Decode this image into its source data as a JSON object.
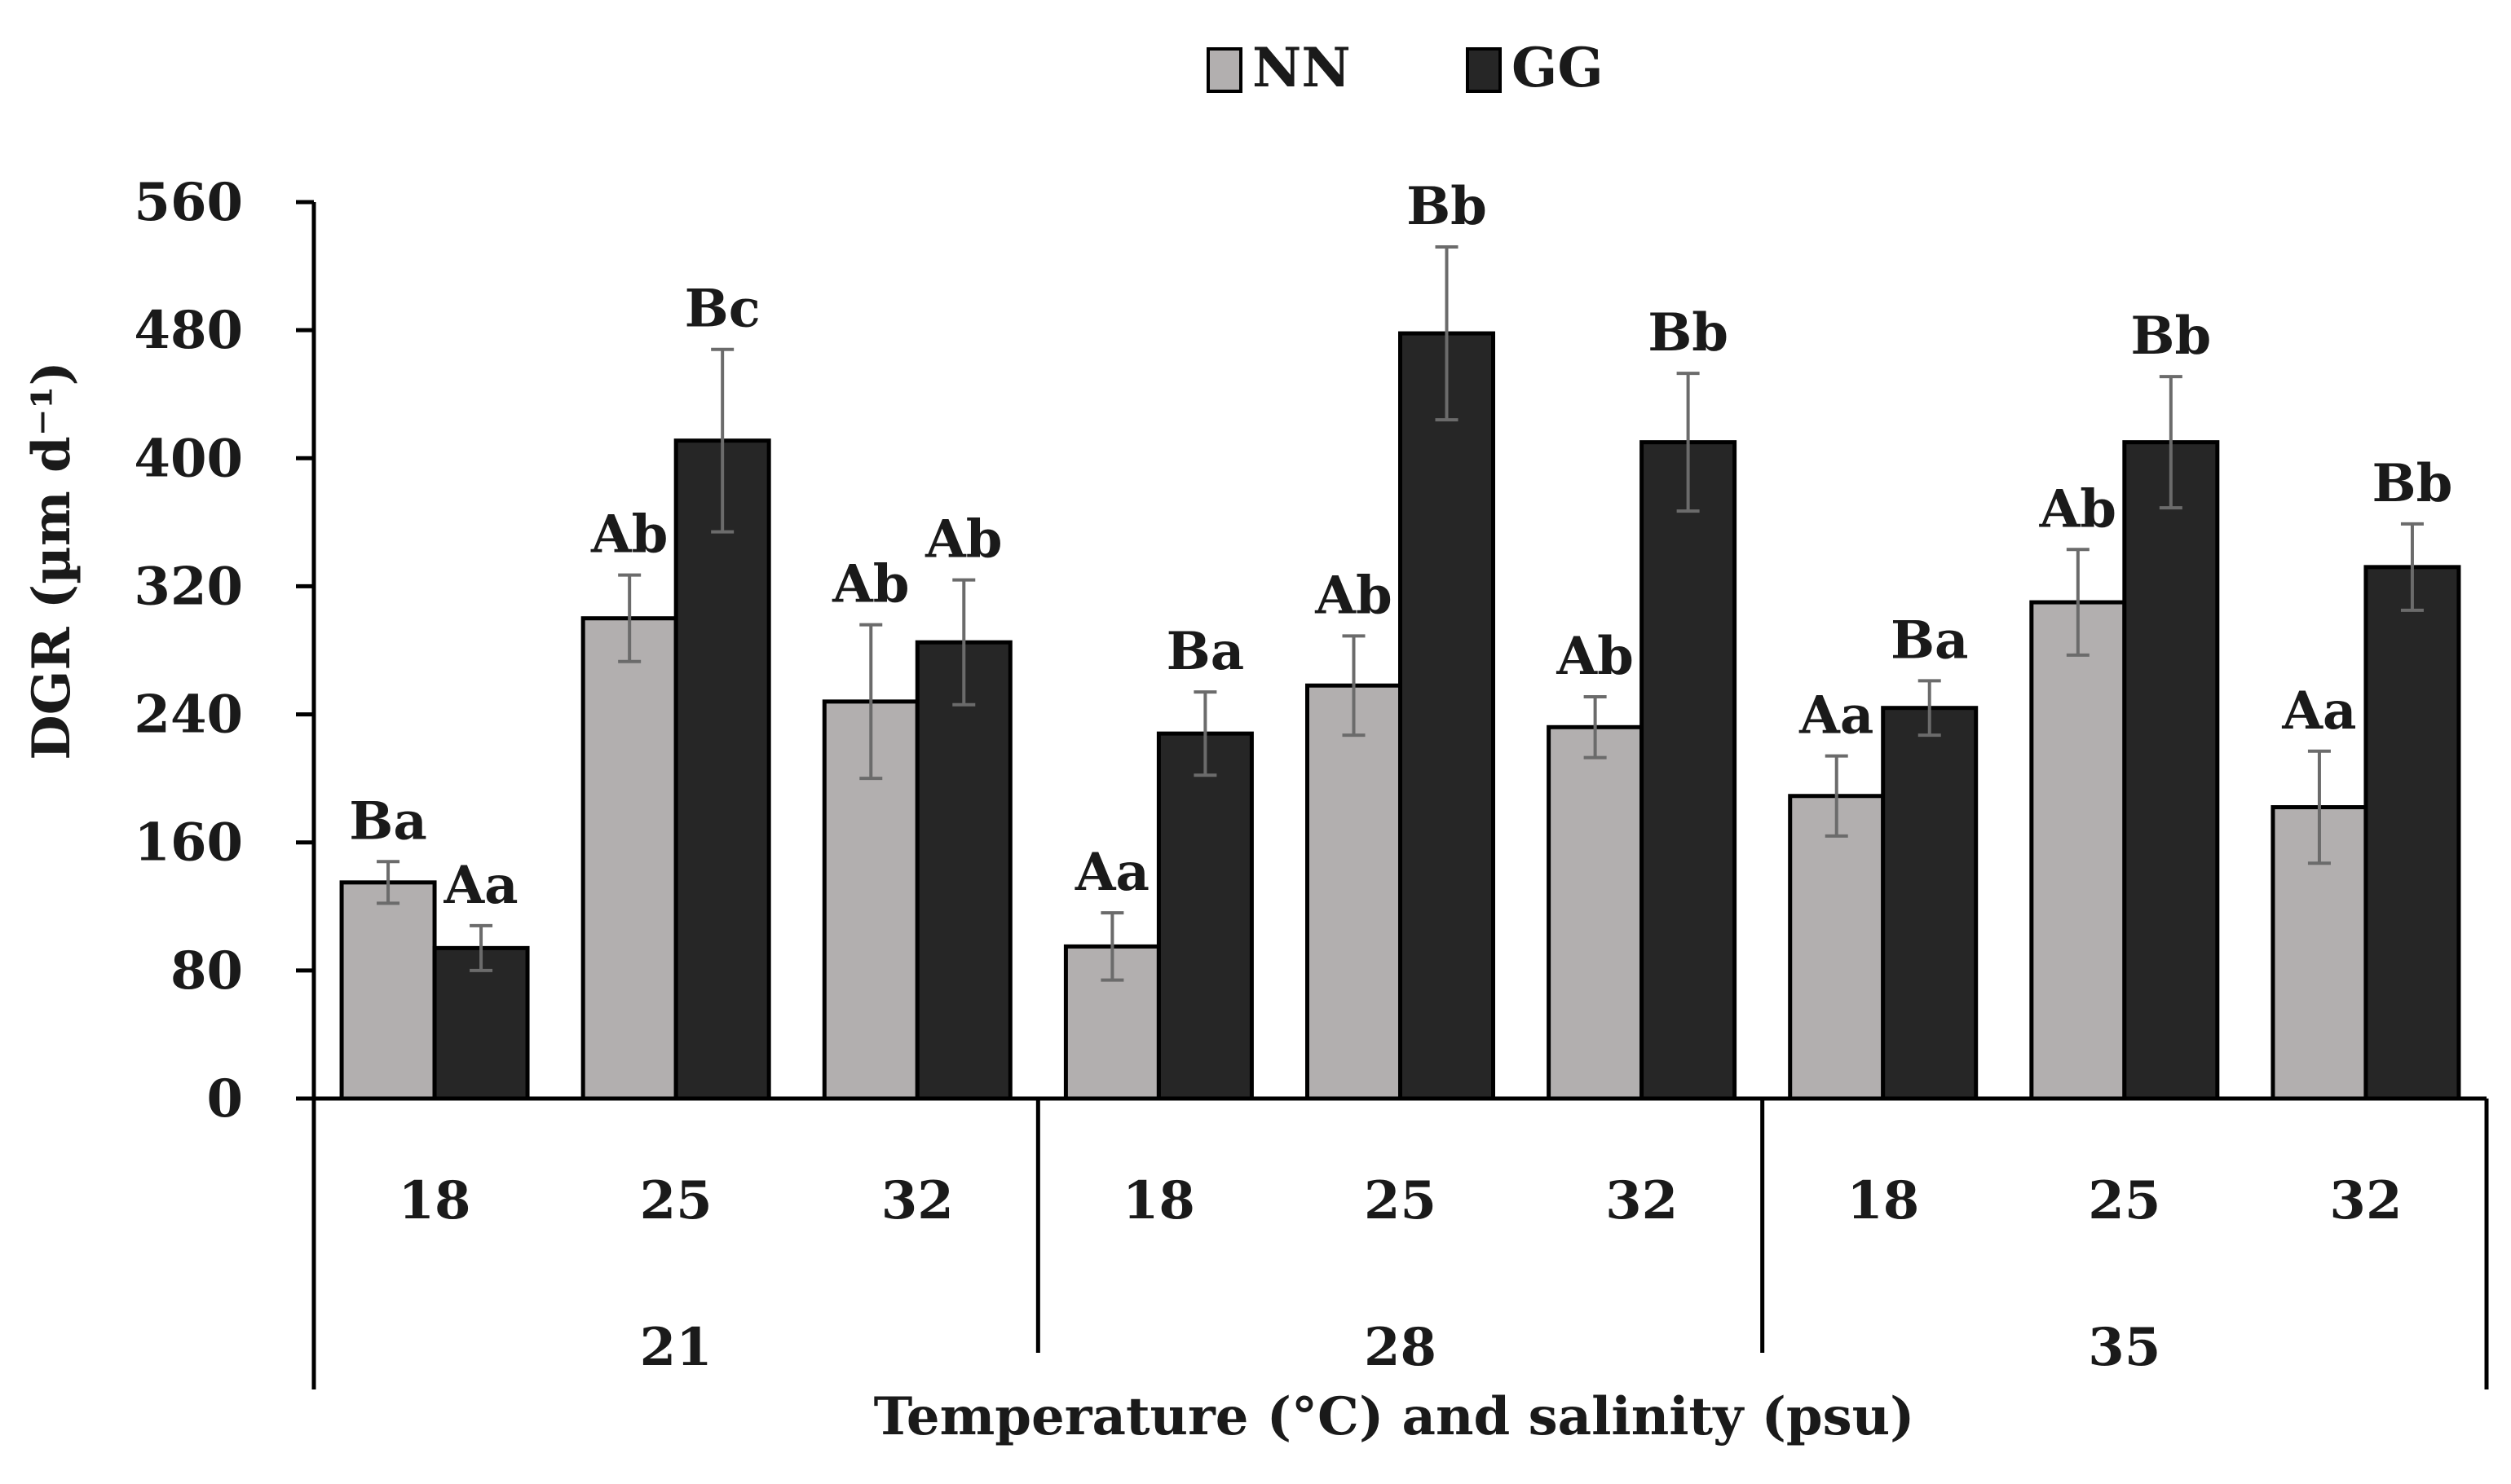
{
  "chart_data": {
    "type": "bar",
    "title": "",
    "ylabel": "DGR (µm d⁻¹)",
    "xlabel": "Temperature (°C) and salinity (psu)",
    "ylim": [
      0,
      560
    ],
    "yticks": [
      "0",
      "80",
      "160",
      "240",
      "320",
      "400",
      "480",
      "560"
    ],
    "ytick_values": [
      0,
      80,
      160,
      240,
      320,
      400,
      480,
      560
    ],
    "legend_position": "top-center",
    "groups": [
      {
        "label": "21",
        "categories": [
          "18",
          "25",
          "32"
        ]
      },
      {
        "label": "28",
        "categories": [
          "18",
          "25",
          "32"
        ]
      },
      {
        "label": "35",
        "categories": [
          "18",
          "25",
          "32"
        ]
      }
    ],
    "series": [
      {
        "name": "NN",
        "color": "#b2afaf",
        "values": [
          135,
          300,
          248,
          95,
          258,
          232,
          189,
          310,
          182
        ],
        "errors": [
          13,
          27,
          48,
          21,
          31,
          19,
          25,
          33,
          35
        ],
        "labels": [
          "Ba",
          "Ab",
          "Ab",
          "Aa",
          "Ab",
          "Ab",
          "Aa",
          "Ab",
          "Aa"
        ]
      },
      {
        "name": "GG",
        "color": "#262626",
        "values": [
          94,
          411,
          285,
          228,
          478,
          410,
          244,
          410,
          332
        ],
        "errors": [
          14,
          57,
          39,
          26,
          54,
          43,
          17,
          41,
          27
        ],
        "labels": [
          "Aa",
          "Bc",
          "Ab",
          "Ba",
          "Bb",
          "Bb",
          "Ba",
          "Bb",
          "Bb"
        ]
      }
    ]
  }
}
